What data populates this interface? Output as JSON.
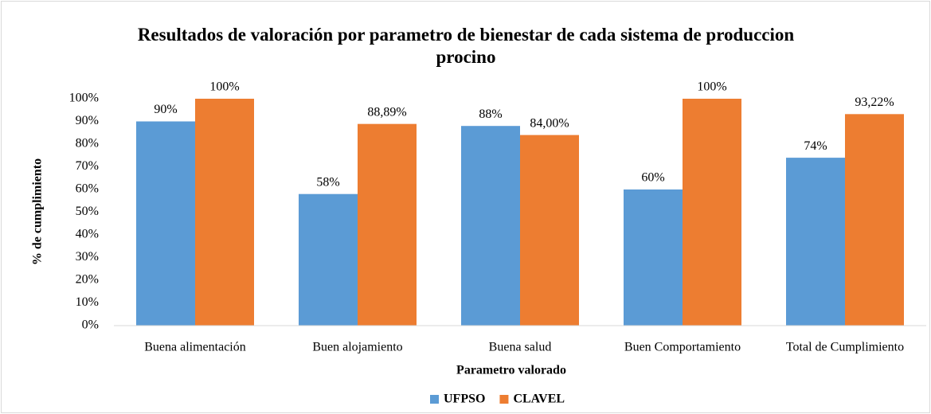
{
  "chart_data": {
    "type": "bar",
    "title": "Resultados de valoración por parametro  de bienestar de cada sistema de produccion  procino",
    "x_label": "Parametro  valorado",
    "y_label": "% de cumplimiento",
    "categories": [
      "Buena alimentación",
      "Buen alojamiento",
      "Buena salud",
      "Buen Comportamiento",
      "Total de Cumplimiento"
    ],
    "series": [
      {
        "name": "UFPSO",
        "color": "#5b9bd5",
        "values": [
          90,
          58,
          88,
          60,
          74
        ],
        "value_labels": [
          "90%",
          "58%",
          "88%",
          "60%",
          "74%"
        ]
      },
      {
        "name": "CLAVEL",
        "color": "#ed7d31",
        "values": [
          100,
          88.89,
          84,
          100,
          93.22
        ],
        "value_labels": [
          "100%",
          "88,89%",
          "84,00%",
          "100%",
          "93,22%"
        ]
      }
    ],
    "ylim": [
      0,
      100
    ],
    "yticks": [
      {
        "value": 0,
        "label": "0%"
      },
      {
        "value": 10,
        "label": "10%"
      },
      {
        "value": 20,
        "label": "20%"
      },
      {
        "value": 30,
        "label": "30%"
      },
      {
        "value": 40,
        "label": "40%"
      },
      {
        "value": 50,
        "label": "50%"
      },
      {
        "value": 60,
        "label": "60%"
      },
      {
        "value": 70,
        "label": "70%"
      },
      {
        "value": 80,
        "label": "80%"
      },
      {
        "value": 90,
        "label": "90%"
      },
      {
        "value": 100,
        "label": "100%"
      }
    ],
    "grid": false,
    "legend": "bottom"
  }
}
